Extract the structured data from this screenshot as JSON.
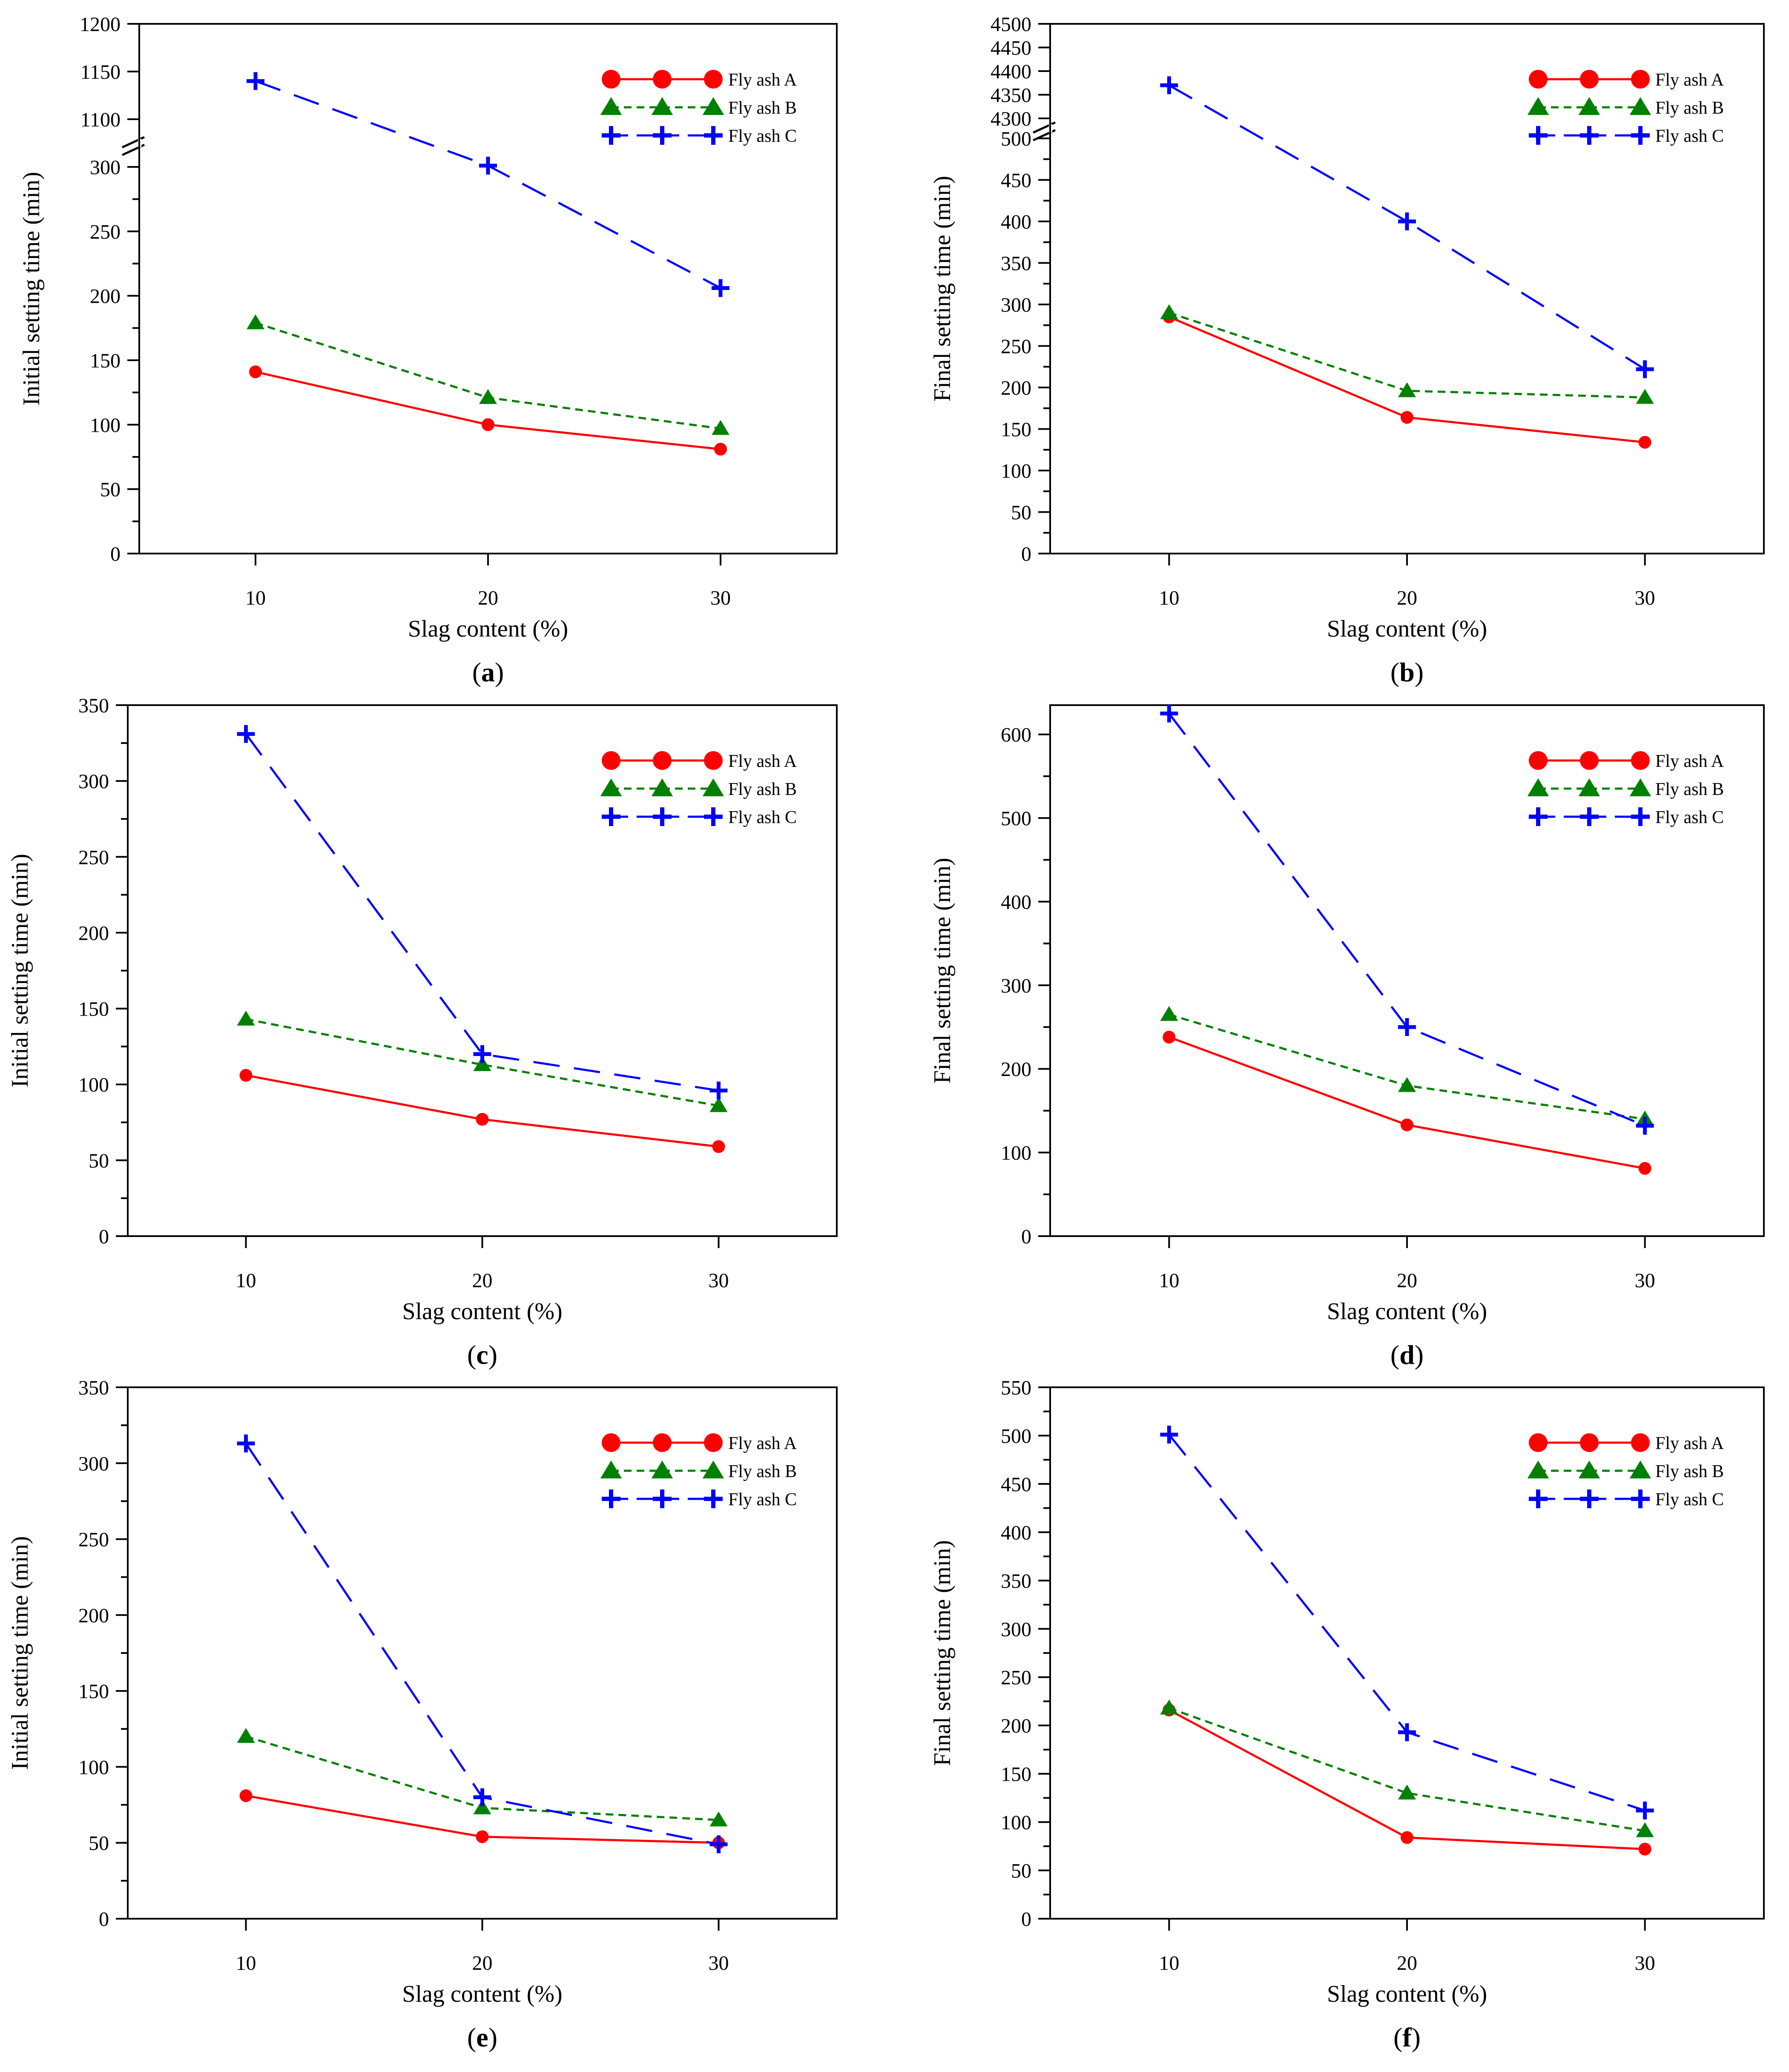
{
  "colors": {
    "fly_ash_a": "#ff0000",
    "fly_ash_b": "#008000",
    "fly_ash_c": "#0000ff",
    "axis": "#000000"
  },
  "chart_data": [
    {
      "type": "line",
      "panel_label": "a",
      "xlabel": "Slag content (%)",
      "ylabel": "Initial setting time (min)",
      "categories": [
        "10",
        "20",
        "30"
      ],
      "x": [
        10,
        20,
        30
      ],
      "broken_axis": {
        "lower_range": [
          0,
          300
        ],
        "upper_range": [
          1100,
          1200
        ],
        "lower_ticks": [
          "0",
          "50",
          "100",
          "150",
          "200",
          "250",
          "300"
        ],
        "upper_ticks": [
          "1100",
          "1150",
          "1200"
        ]
      },
      "legend_position": "top-right",
      "series": [
        {
          "name": "Fly ash A",
          "values": [
            141,
            100,
            81
          ]
        },
        {
          "name": "Fly ash B",
          "values": [
            179,
            121,
            97
          ]
        },
        {
          "name": "Fly ash C",
          "values": [
            1140,
            301,
            206
          ]
        }
      ]
    },
    {
      "type": "line",
      "panel_label": "b",
      "xlabel": "Slag content (%)",
      "ylabel": "Final setting time (min)",
      "categories": [
        "10",
        "20",
        "30"
      ],
      "x": [
        10,
        20,
        30
      ],
      "broken_axis": {
        "lower_range": [
          0,
          500
        ],
        "upper_range": [
          4300,
          4500
        ],
        "lower_ticks": [
          "0",
          "50",
          "100",
          "150",
          "200",
          "250",
          "300",
          "350",
          "400",
          "450",
          "500"
        ],
        "upper_ticks": [
          "4300",
          "4350",
          "4400",
          "4450",
          "4500"
        ]
      },
      "legend_position": "top-right",
      "series": [
        {
          "name": "Fly ash A",
          "values": [
            285,
            164,
            134
          ]
        },
        {
          "name": "Fly ash B",
          "values": [
            290,
            196,
            188
          ]
        },
        {
          "name": "Fly ash C",
          "values": [
            4370,
            400,
            222
          ]
        }
      ]
    },
    {
      "type": "line",
      "panel_label": "c",
      "xlabel": "Slag content (%)",
      "ylabel": "Initial setting time (min)",
      "categories": [
        "10",
        "20",
        "30"
      ],
      "x": [
        10,
        20,
        30
      ],
      "ylim": [
        0,
        350
      ],
      "yticks": [
        "0",
        "50",
        "100",
        "150",
        "200",
        "250",
        "300",
        "350"
      ],
      "legend_position": "top-right",
      "series": [
        {
          "name": "Fly ash A",
          "values": [
            106,
            77,
            59
          ]
        },
        {
          "name": "Fly ash B",
          "values": [
            143,
            113,
            86
          ]
        },
        {
          "name": "Fly ash C",
          "values": [
            331,
            120,
            96
          ]
        }
      ]
    },
    {
      "type": "line",
      "panel_label": "d",
      "xlabel": "Slag content (%)",
      "ylabel": "Final setting time (min)",
      "categories": [
        "10",
        "20",
        "30"
      ],
      "x": [
        10,
        20,
        30
      ],
      "ylim": [
        0,
        635
      ],
      "yticks": [
        "0",
        "100",
        "200",
        "300",
        "400",
        "500",
        "600"
      ],
      "legend_position": "top-right",
      "series": [
        {
          "name": "Fly ash A",
          "values": [
            238,
            133,
            81
          ]
        },
        {
          "name": "Fly ash B",
          "values": [
            265,
            180,
            140
          ]
        },
        {
          "name": "Fly ash C",
          "values": [
            625,
            250,
            132
          ]
        }
      ]
    },
    {
      "type": "line",
      "panel_label": "e",
      "xlabel": "Slag content (%)",
      "ylabel": "Initial setting time (min)",
      "categories": [
        "10",
        "20",
        "30"
      ],
      "x": [
        10,
        20,
        30
      ],
      "ylim": [
        0,
        350
      ],
      "yticks": [
        "0",
        "50",
        "100",
        "150",
        "200",
        "250",
        "300",
        "350"
      ],
      "legend_position": "top-right",
      "series": [
        {
          "name": "Fly ash A",
          "values": [
            81,
            54,
            50
          ]
        },
        {
          "name": "Fly ash B",
          "values": [
            120,
            73,
            65
          ]
        },
        {
          "name": "Fly ash C",
          "values": [
            313,
            80,
            49
          ]
        }
      ]
    },
    {
      "type": "line",
      "panel_label": "f",
      "xlabel": "Slag content (%)",
      "ylabel": "Final setting time (min)",
      "categories": [
        "10",
        "20",
        "30"
      ],
      "x": [
        10,
        20,
        30
      ],
      "ylim": [
        0,
        550
      ],
      "yticks": [
        "0",
        "50",
        "100",
        "150",
        "200",
        "250",
        "300",
        "350",
        "400",
        "450",
        "500",
        "550"
      ],
      "legend_position": "top-right",
      "series": [
        {
          "name": "Fly ash A",
          "values": [
            216,
            84,
            72
          ]
        },
        {
          "name": "Fly ash B",
          "values": [
            218,
            130,
            91
          ]
        },
        {
          "name": "Fly ash C",
          "values": [
            501,
            193,
            112
          ]
        }
      ]
    }
  ]
}
